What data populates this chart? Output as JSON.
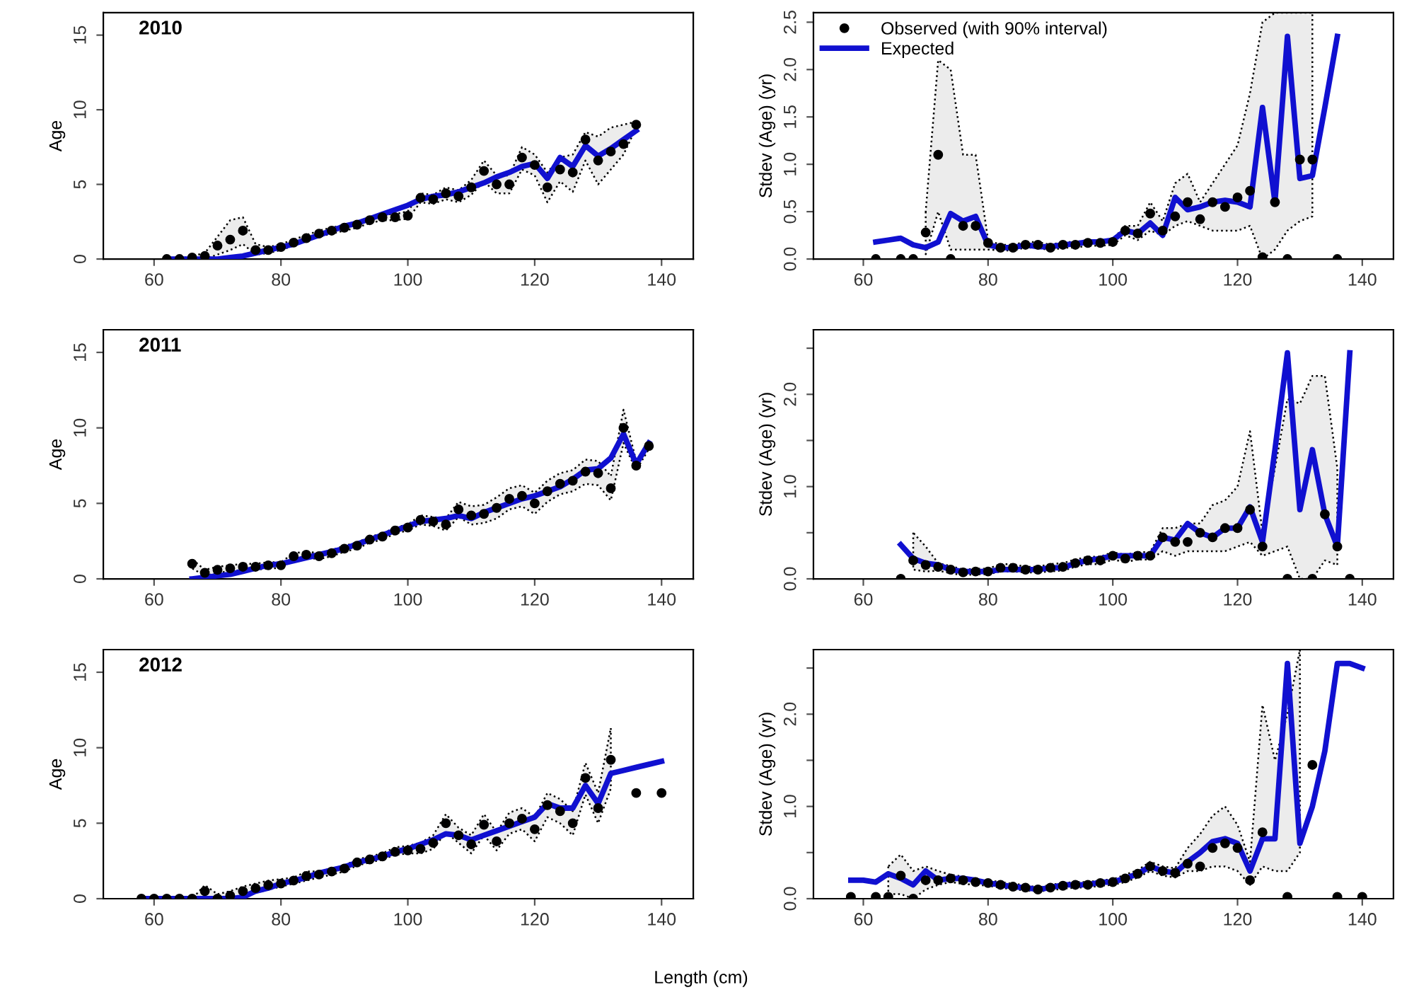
{
  "chart_data": [
    {
      "type": "line",
      "title": "2010",
      "ylabel": "Age",
      "xlim": [
        52,
        145
      ],
      "ylim": [
        0,
        16.5
      ],
      "xticks": [
        60,
        80,
        100,
        120,
        140
      ],
      "yticks": [
        0,
        5,
        10,
        15
      ],
      "grid": false,
      "x": [
        62,
        64,
        66,
        68,
        70,
        72,
        74,
        76,
        78,
        80,
        82,
        84,
        86,
        88,
        90,
        92,
        94,
        96,
        98,
        100,
        102,
        104,
        106,
        108,
        110,
        112,
        114,
        116,
        118,
        120,
        122,
        124,
        126,
        128,
        130,
        132,
        134,
        136
      ],
      "series": [
        {
          "type": "scatter",
          "marker": "circle",
          "color": "#000000",
          "values": [
            0,
            0,
            0.1,
            0.2,
            0.9,
            1.3,
            1.9,
            0.6,
            0.6,
            0.8,
            1.1,
            1.4,
            1.7,
            1.9,
            2.1,
            2.3,
            2.6,
            2.8,
            2.8,
            2.9,
            4.1,
            4.0,
            4.4,
            4.2,
            4.8,
            5.9,
            5.0,
            5.0,
            6.8,
            6.3,
            4.8,
            6.0,
            5.8,
            8.0,
            6.6,
            7.2,
            7.7,
            9.0
          ],
          "lower": [
            0,
            0,
            0,
            0,
            0.3,
            0.6,
            1.0,
            0.3,
            0.4,
            0.6,
            0.9,
            1.2,
            1.5,
            1.7,
            1.9,
            2.1,
            2.4,
            2.6,
            2.6,
            2.7,
            3.8,
            3.7,
            4.0,
            3.8,
            4.3,
            5.2,
            4.4,
            4.4,
            6.0,
            5.6,
            3.8,
            5.2,
            4.5,
            6.6,
            5.0,
            6.0,
            7.0,
            8.8
          ],
          "upper": [
            0,
            0,
            0.2,
            0.4,
            1.5,
            2.6,
            2.8,
            1.0,
            0.8,
            1.0,
            1.3,
            1.6,
            1.9,
            2.1,
            2.3,
            2.5,
            2.8,
            3.0,
            3.0,
            3.2,
            4.4,
            4.3,
            4.8,
            4.6,
            5.3,
            6.6,
            5.6,
            5.6,
            7.5,
            7.0,
            5.8,
            6.8,
            7.0,
            8.5,
            8.2,
            8.8,
            9.0,
            9.2
          ]
        },
        {
          "type": "line",
          "color": "#1010d0",
          "values": [
            0,
            0,
            0,
            0,
            0,
            0.1,
            0.2,
            0.4,
            0.6,
            0.8,
            1.0,
            1.3,
            1.6,
            1.9,
            2.2,
            2.4,
            2.7,
            3.0,
            3.3,
            3.6,
            4.0,
            4.2,
            4.3,
            4.5,
            4.8,
            5.1,
            5.5,
            5.8,
            6.2,
            6.4,
            5.4,
            6.8,
            6.2,
            7.6,
            6.9,
            7.4,
            8.0,
            8.6
          ]
        }
      ]
    },
    {
      "type": "line",
      "ylabel": "Stdev (Age) (yr)",
      "xlim": [
        52,
        145
      ],
      "ylim": [
        0,
        2.6
      ],
      "xticks": [
        60,
        80,
        100,
        120,
        140
      ],
      "yticks": [
        {
          "value": 0,
          "label": "0.0"
        },
        {
          "value": 0.5,
          "label": "0.5"
        },
        {
          "value": 1,
          "label": "1.0"
        },
        {
          "value": 1.5,
          "label": "1.5"
        },
        {
          "value": 2,
          "label": "2.0"
        },
        {
          "value": 2.5,
          "label": "2.5"
        }
      ],
      "grid": false,
      "legend": "top left",
      "x": [
        62,
        64,
        66,
        68,
        70,
        72,
        74,
        76,
        78,
        80,
        82,
        84,
        86,
        88,
        90,
        92,
        94,
        96,
        98,
        100,
        102,
        104,
        106,
        108,
        110,
        112,
        114,
        116,
        118,
        120,
        122,
        124,
        126,
        128,
        130,
        132,
        134,
        136
      ],
      "series": [
        {
          "type": "scatter",
          "name": "Observed (with 90% interval)",
          "marker": "circle",
          "color": "#000000",
          "values": [
            0,
            null,
            0,
            0,
            0.28,
            1.1,
            0,
            0.35,
            0.35,
            0.17,
            0.12,
            0.12,
            0.15,
            0.15,
            0.12,
            0.15,
            0.15,
            0.17,
            0.17,
            0.18,
            0.3,
            0.27,
            0.48,
            0.3,
            0.45,
            0.6,
            0.42,
            0.6,
            0.55,
            0.65,
            0.72,
            0.02,
            0.6,
            0,
            1.05,
            1.05,
            null,
            0
          ],
          "lower": [
            null,
            null,
            null,
            null,
            0.05,
            0.5,
            0.1,
            0.1,
            0.1,
            0.1,
            0.09,
            0.09,
            0.12,
            0.12,
            0.09,
            0.12,
            0.12,
            0.14,
            0.14,
            0.15,
            0.25,
            0.2,
            0.3,
            0.25,
            0.35,
            0.4,
            0.35,
            0.3,
            0.3,
            0.3,
            0.35,
            0,
            0.1,
            0.3,
            0.4,
            0.45,
            null,
            null
          ],
          "upper": [
            null,
            null,
            null,
            null,
            0.5,
            2.1,
            2.0,
            1.1,
            1.1,
            0.2,
            0.15,
            0.15,
            0.18,
            0.18,
            0.15,
            0.18,
            0.18,
            0.2,
            0.2,
            0.21,
            0.35,
            0.35,
            0.6,
            0.4,
            0.8,
            0.9,
            0.6,
            0.8,
            1.0,
            1.2,
            1.75,
            2.5,
            2.6,
            2.6,
            2.6,
            2.6,
            null,
            null
          ]
        },
        {
          "type": "line",
          "name": "Expected",
          "color": "#1010d0",
          "values": [
            0.18,
            0.2,
            0.22,
            0.15,
            0.12,
            0.18,
            0.48,
            0.4,
            0.45,
            0.15,
            0.12,
            0.12,
            0.15,
            0.13,
            0.13,
            0.15,
            0.16,
            0.18,
            0.18,
            0.2,
            0.3,
            0.27,
            0.38,
            0.25,
            0.65,
            0.52,
            0.55,
            0.6,
            0.62,
            0.6,
            0.55,
            1.6,
            0.6,
            2.35,
            0.85,
            0.88,
            1.6,
            2.35
          ]
        }
      ]
    },
    {
      "type": "line",
      "title": "2011",
      "ylabel": "Age",
      "xlim": [
        52,
        145
      ],
      "ylim": [
        0,
        16.5
      ],
      "xticks": [
        60,
        80,
        100,
        120,
        140
      ],
      "yticks": [
        0,
        5,
        10,
        15
      ],
      "grid": false,
      "x": [
        66,
        68,
        70,
        72,
        74,
        76,
        78,
        80,
        82,
        84,
        86,
        88,
        90,
        92,
        94,
        96,
        98,
        100,
        102,
        104,
        106,
        108,
        110,
        112,
        114,
        116,
        118,
        120,
        122,
        124,
        126,
        128,
        130,
        132,
        134,
        136,
        138
      ],
      "series": [
        {
          "type": "scatter",
          "marker": "circle",
          "color": "#000000",
          "values": [
            1.0,
            0.4,
            0.6,
            0.7,
            0.8,
            0.8,
            0.9,
            0.9,
            1.5,
            1.6,
            1.5,
            1.7,
            2.0,
            2.2,
            2.6,
            2.8,
            3.2,
            3.4,
            3.9,
            3.8,
            3.6,
            4.6,
            4.2,
            4.3,
            4.7,
            5.3,
            5.5,
            5.0,
            5.8,
            6.3,
            6.5,
            7.1,
            7.0,
            6.0,
            10.0,
            7.5,
            8.8
          ],
          "lower": [
            0.7,
            0.2,
            0.4,
            0.5,
            0.6,
            0.6,
            0.7,
            0.7,
            1.3,
            1.4,
            1.3,
            1.5,
            1.8,
            2.0,
            2.4,
            2.6,
            3.0,
            3.2,
            3.6,
            3.5,
            3.2,
            4.1,
            3.6,
            3.7,
            4.0,
            4.6,
            4.8,
            4.3,
            5.1,
            5.6,
            5.8,
            6.3,
            6.2,
            5.2,
            9.0,
            7.2,
            8.6
          ],
          "upper": [
            1.3,
            0.6,
            0.8,
            0.9,
            1.0,
            1.0,
            1.1,
            1.1,
            1.7,
            1.8,
            1.7,
            1.9,
            2.2,
            2.4,
            2.8,
            3.0,
            3.4,
            3.6,
            4.2,
            4.1,
            4.0,
            5.1,
            4.8,
            4.9,
            5.4,
            6.0,
            6.2,
            5.7,
            6.5,
            7.0,
            7.2,
            7.9,
            7.8,
            6.8,
            11.2,
            7.8,
            9.0
          ]
        },
        {
          "type": "line",
          "color": "#1010d0",
          "values": [
            0,
            0.1,
            0.2,
            0.3,
            0.5,
            0.7,
            0.9,
            1.0,
            1.2,
            1.4,
            1.6,
            1.8,
            2.0,
            2.3,
            2.6,
            2.9,
            3.2,
            3.5,
            3.8,
            3.9,
            4.0,
            4.2,
            4.0,
            4.4,
            4.7,
            5.0,
            5.3,
            5.5,
            5.8,
            6.1,
            6.6,
            7.2,
            7.3,
            8.0,
            9.6,
            7.6,
            9.0
          ]
        }
      ]
    },
    {
      "type": "line",
      "ylabel": "Stdev (Age) (yr)",
      "xlim": [
        52,
        145
      ],
      "ylim": [
        0,
        2.7
      ],
      "xticks": [
        60,
        80,
        100,
        120,
        140
      ],
      "yticks": [
        {
          "value": 0,
          "label": "0.0"
        },
        {
          "value": 0.5,
          "label": null
        },
        {
          "value": 1,
          "label": "1.0"
        },
        {
          "value": 1.5,
          "label": null
        },
        {
          "value": 2,
          "label": "2.0"
        },
        {
          "value": 2.5,
          "label": null
        }
      ],
      "grid": false,
      "x": [
        66,
        68,
        70,
        72,
        74,
        76,
        78,
        80,
        82,
        84,
        86,
        88,
        90,
        92,
        94,
        96,
        98,
        100,
        102,
        104,
        106,
        108,
        110,
        112,
        114,
        116,
        118,
        120,
        122,
        124,
        126,
        128,
        130,
        132,
        134,
        136,
        138
      ],
      "series": [
        {
          "type": "scatter",
          "marker": "circle",
          "color": "#000000",
          "values": [
            0,
            0.2,
            0.15,
            0.13,
            0.1,
            0.07,
            0.08,
            0.08,
            0.12,
            0.12,
            0.1,
            0.1,
            0.12,
            0.13,
            0.17,
            0.2,
            0.2,
            0.25,
            0.22,
            0.25,
            0.25,
            0.45,
            0.4,
            0.4,
            0.5,
            0.45,
            0.55,
            0.55,
            0.75,
            0.35,
            null,
            0,
            null,
            0,
            0.7,
            0.35,
            0
          ],
          "lower": [
            null,
            0.1,
            0.08,
            0.09,
            0.06,
            0.04,
            0.05,
            0.05,
            0.08,
            0.08,
            0.07,
            0.07,
            0.08,
            0.09,
            0.13,
            0.16,
            0.16,
            0.21,
            0.18,
            0.21,
            0.21,
            0.3,
            0.25,
            0.3,
            0.3,
            0.3,
            0.3,
            0.35,
            0.4,
            0.25,
            0.3,
            0.35,
            0,
            0,
            0.2,
            0.15,
            null
          ],
          "upper": [
            null,
            0.5,
            0.35,
            0.17,
            0.14,
            0.1,
            0.11,
            0.11,
            0.16,
            0.16,
            0.13,
            0.13,
            0.16,
            0.17,
            0.21,
            0.24,
            0.24,
            0.29,
            0.26,
            0.29,
            0.29,
            0.55,
            0.55,
            0.6,
            0.6,
            0.8,
            0.85,
            1.0,
            1.6,
            0.5,
            1.2,
            1.95,
            1.9,
            2.2,
            2.2,
            1.2,
            null
          ]
        },
        {
          "type": "line",
          "color": "#1010d0",
          "values": [
            0.37,
            0.22,
            0.17,
            0.15,
            0.1,
            0.08,
            0.08,
            0.08,
            0.1,
            0.1,
            0.1,
            0.1,
            0.12,
            0.12,
            0.17,
            0.2,
            0.22,
            0.25,
            0.25,
            0.25,
            0.25,
            0.45,
            0.42,
            0.6,
            0.5,
            0.45,
            0.55,
            0.55,
            0.78,
            0.4,
            1.4,
            2.45,
            0.75,
            1.4,
            0.7,
            0.35,
            2.45
          ]
        }
      ]
    },
    {
      "type": "line",
      "title": "2012",
      "ylabel": "Age",
      "xlabel": "Length (cm)",
      "xlim": [
        52,
        145
      ],
      "ylim": [
        0,
        16.5
      ],
      "xticks": [
        60,
        80,
        100,
        120,
        140
      ],
      "yticks": [
        0,
        5,
        10,
        15
      ],
      "grid": false,
      "x": [
        58,
        60,
        62,
        64,
        66,
        68,
        70,
        72,
        74,
        76,
        78,
        80,
        82,
        84,
        86,
        88,
        90,
        92,
        94,
        96,
        98,
        100,
        102,
        104,
        106,
        108,
        110,
        112,
        114,
        116,
        118,
        120,
        122,
        124,
        126,
        128,
        130,
        132,
        134,
        136,
        138,
        140
      ],
      "series": [
        {
          "type": "scatter",
          "marker": "circle",
          "color": "#000000",
          "values": [
            0,
            0,
            0,
            0,
            0,
            0.5,
            0,
            0.2,
            0.5,
            0.7,
            0.9,
            1.0,
            1.2,
            1.5,
            1.6,
            1.8,
            2.0,
            2.4,
            2.6,
            2.8,
            3.1,
            3.2,
            3.3,
            3.7,
            5.0,
            4.2,
            3.6,
            4.9,
            3.8,
            5.0,
            5.3,
            4.6,
            6.2,
            5.8,
            5.0,
            8.0,
            6.0,
            9.2,
            null,
            7.0,
            null,
            7.0
          ],
          "lower": [
            0,
            0,
            0,
            0,
            0,
            0.1,
            0,
            0,
            0.2,
            0.4,
            0.6,
            0.8,
            1.0,
            1.2,
            1.4,
            1.6,
            1.8,
            2.2,
            2.4,
            2.6,
            2.9,
            3.0,
            3.0,
            3.3,
            4.4,
            3.7,
            3.0,
            4.2,
            3.2,
            4.3,
            4.6,
            3.8,
            5.4,
            5.0,
            4.2,
            6.9,
            5.0,
            7.3,
            null,
            null,
            null,
            null
          ],
          "upper": [
            0,
            0,
            0,
            0,
            0,
            0.9,
            0.3,
            0.5,
            0.8,
            1.0,
            1.2,
            1.3,
            1.4,
            1.8,
            1.8,
            2.0,
            2.2,
            2.6,
            2.8,
            3.0,
            3.4,
            3.5,
            3.7,
            4.2,
            5.6,
            4.7,
            4.2,
            5.6,
            4.4,
            5.7,
            6.0,
            5.4,
            7.0,
            6.6,
            5.8,
            9.0,
            7.0,
            11.3,
            null,
            null,
            null,
            null
          ]
        },
        {
          "type": "line",
          "color": "#1010d0",
          "values": [
            0,
            0,
            0,
            0,
            0,
            0,
            0,
            0,
            0.1,
            0.5,
            0.7,
            1.0,
            1.2,
            1.4,
            1.7,
            1.9,
            2.1,
            2.4,
            2.6,
            2.8,
            3.1,
            3.3,
            3.6,
            3.9,
            4.3,
            4.2,
            3.9,
            4.2,
            4.5,
            4.8,
            5.1,
            5.4,
            6.3,
            6.0,
            6.0,
            7.5,
            6.3,
            8.3,
            8.5,
            8.7,
            8.9,
            9.1
          ]
        }
      ]
    },
    {
      "type": "line",
      "ylabel": "Stdev (Age) (yr)",
      "xlim": [
        52,
        145
      ],
      "ylim": [
        0,
        2.7
      ],
      "xticks": [
        60,
        80,
        100,
        120,
        140
      ],
      "yticks": [
        {
          "value": 0,
          "label": "0.0"
        },
        {
          "value": 0.5,
          "label": null
        },
        {
          "value": 1,
          "label": "1.0"
        },
        {
          "value": 1.5,
          "label": null
        },
        {
          "value": 2,
          "label": "2.0"
        },
        {
          "value": 2.5,
          "label": null
        }
      ],
      "grid": false,
      "x": [
        58,
        60,
        62,
        64,
        66,
        68,
        70,
        72,
        74,
        76,
        78,
        80,
        82,
        84,
        86,
        88,
        90,
        92,
        94,
        96,
        98,
        100,
        102,
        104,
        106,
        108,
        110,
        112,
        114,
        116,
        118,
        120,
        122,
        124,
        126,
        128,
        130,
        132,
        134,
        136,
        138,
        140
      ],
      "series": [
        {
          "type": "scatter",
          "marker": "circle",
          "color": "#000000",
          "values": [
            0.02,
            null,
            0.02,
            0.02,
            0.25,
            0,
            0.2,
            0.2,
            0.22,
            0.2,
            0.18,
            0.17,
            0.15,
            0.13,
            0.12,
            0.1,
            0.12,
            0.14,
            0.15,
            0.15,
            0.17,
            0.18,
            0.22,
            0.27,
            0.35,
            0.3,
            0.28,
            0.38,
            0.35,
            0.55,
            0.6,
            0.55,
            0.2,
            0.72,
            null,
            0.02,
            null,
            1.45,
            null,
            0.02,
            null,
            0.02
          ],
          "lower": [
            null,
            null,
            null,
            0.05,
            0.05,
            0,
            0.1,
            0.15,
            0.18,
            0.16,
            0.15,
            0.14,
            0.12,
            0.1,
            0.09,
            0.08,
            0.09,
            0.11,
            0.12,
            0.12,
            0.14,
            0.15,
            0.18,
            0.23,
            0.3,
            0.25,
            0.23,
            0.3,
            0.3,
            0.35,
            0.35,
            0.3,
            0.15,
            0.35,
            0.3,
            0.3,
            0.5,
            null,
            null,
            null,
            null,
            null
          ],
          "upper": [
            null,
            null,
            null,
            0.35,
            0.48,
            0.3,
            0.35,
            0.3,
            0.26,
            0.24,
            0.21,
            0.2,
            0.18,
            0.16,
            0.15,
            0.12,
            0.15,
            0.17,
            0.18,
            0.18,
            0.2,
            0.21,
            0.26,
            0.31,
            0.4,
            0.35,
            0.33,
            0.55,
            0.7,
            0.9,
            1.0,
            0.8,
            0.4,
            2.1,
            1.5,
            2.0,
            2.7,
            null,
            null,
            null,
            null,
            null
          ]
        },
        {
          "type": "line",
          "color": "#1010d0",
          "values": [
            0.2,
            0.2,
            0.18,
            0.27,
            0.22,
            0.15,
            0.3,
            0.2,
            0.22,
            0.22,
            0.2,
            0.17,
            0.15,
            0.13,
            0.12,
            0.1,
            0.12,
            0.15,
            0.15,
            0.15,
            0.18,
            0.18,
            0.22,
            0.27,
            0.35,
            0.3,
            0.28,
            0.4,
            0.5,
            0.62,
            0.65,
            0.6,
            0.3,
            0.65,
            0.65,
            2.55,
            0.6,
            1.0,
            1.6,
            2.55,
            2.55,
            2.5
          ]
        }
      ]
    }
  ]
}
